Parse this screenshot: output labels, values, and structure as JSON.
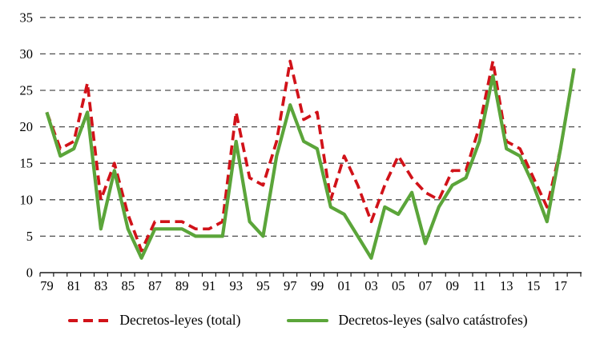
{
  "chart_data": {
    "type": "line",
    "title": "",
    "categories": [
      "1979",
      "1980",
      "1981",
      "1982",
      "1983",
      "1984",
      "1985",
      "1986",
      "1987",
      "1988",
      "1989",
      "1990",
      "1991",
      "1992",
      "1993",
      "1994",
      "1995",
      "1996",
      "1997",
      "1998",
      "1999",
      "2000",
      "2001",
      "2002",
      "2003",
      "2004",
      "2005",
      "2006",
      "2007",
      "2008",
      "2009",
      "2010",
      "2011",
      "2012",
      "2013",
      "2014",
      "2015",
      "2016",
      "2017",
      "2018"
    ],
    "x_tick_labels": [
      "79",
      "81",
      "83",
      "85",
      "87",
      "89",
      "91",
      "93",
      "95",
      "97",
      "99",
      "01",
      "03",
      "05",
      "07",
      "09",
      "11",
      "13",
      "15",
      "17"
    ],
    "y_ticks": [
      0,
      5,
      10,
      15,
      20,
      25,
      30,
      35
    ],
    "ylim": [
      0,
      35
    ],
    "grid": "horizontal-dashed",
    "legend_position": "bottom",
    "series": [
      {
        "name": "Decretos-leyes (total)",
        "color": "#d11219",
        "style": "dashed",
        "values": [
          22,
          17,
          18,
          26,
          10,
          15,
          8,
          3,
          7,
          7,
          7,
          6,
          6,
          7,
          22,
          13,
          12,
          18,
          29,
          21,
          22,
          10,
          16,
          12,
          7,
          12,
          16,
          13,
          11,
          10,
          14,
          14,
          20,
          29,
          18,
          17,
          13,
          9,
          17,
          28
        ]
      },
      {
        "name": "Decretos-leyes (salvo catástrofes)",
        "color": "#5ba53a",
        "style": "solid",
        "values": [
          22,
          16,
          17,
          22,
          6,
          14,
          6,
          2,
          6,
          6,
          6,
          5,
          5,
          5,
          18,
          7,
          5,
          16,
          23,
          18,
          17,
          9,
          8,
          5,
          2,
          9,
          8,
          11,
          4,
          9,
          12,
          13,
          18,
          27,
          17,
          16,
          12,
          7,
          17,
          28
        ]
      }
    ]
  }
}
